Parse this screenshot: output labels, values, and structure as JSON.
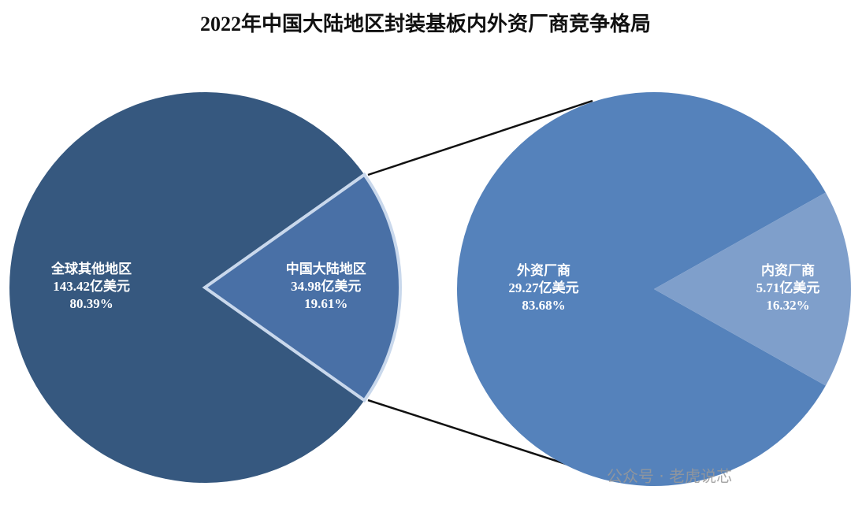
{
  "chart_data": [
    {
      "type": "pie",
      "title": "2022年中国大陆地区封装基板内外资厂商竞争格局",
      "categories": [
        "全球其他地区",
        "中国大陆地区"
      ],
      "values": [
        143.42,
        34.98
      ],
      "value_labels": [
        "143.42亿美元",
        "34.98亿美元"
      ],
      "shares": [
        80.39,
        19.61
      ],
      "share_labels": [
        "80.39%",
        "19.61%"
      ],
      "colors": [
        "#36587f",
        "#4970a6"
      ]
    },
    {
      "type": "pie",
      "categories": [
        "外资厂商",
        "内资厂商"
      ],
      "values": [
        29.27,
        5.71
      ],
      "value_labels": [
        "29.27亿美元",
        "5.71亿美元"
      ],
      "shares": [
        83.68,
        16.32
      ],
      "share_labels": [
        "83.68%",
        "16.32%"
      ],
      "colors": [
        "#5582bb",
        "#7f9fcb"
      ]
    }
  ],
  "watermark": "公众号 · 老虎说芯"
}
